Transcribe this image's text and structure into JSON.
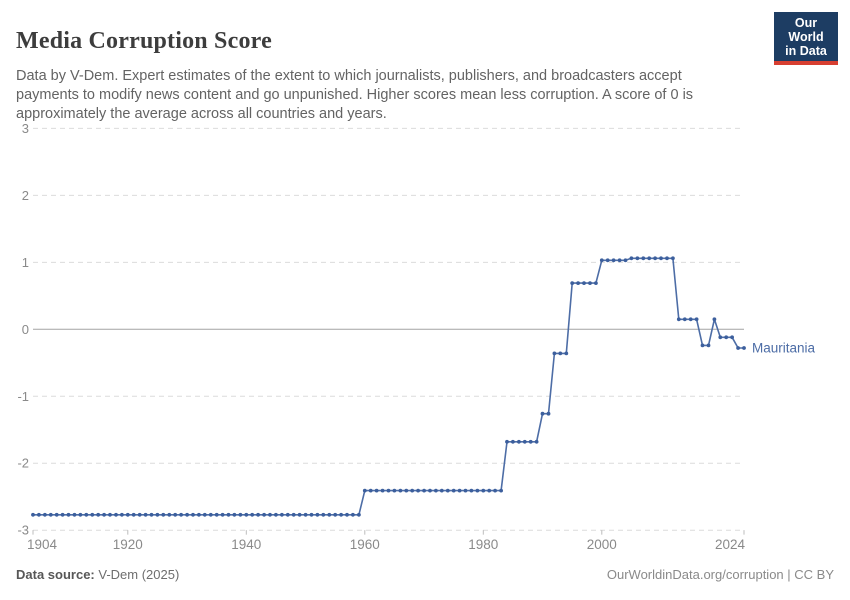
{
  "header": {
    "title": "Media Corruption Score",
    "subtitle": "Data by V-Dem. Expert estimates of the extent to which journalists, publishers, and broadcasters accept payments to modify news content and go unpunished. Higher scores mean less corruption. A score of 0 is approximately the average across all countries and years.",
    "logo": {
      "line1": "Our World",
      "line2": "in Data",
      "bg": "#1d3d63",
      "accent": "#d73f31"
    }
  },
  "footer": {
    "source_label": "Data source:",
    "source_value": "V-Dem (2025)",
    "note": "OurWorldinData.org/corruption | CC BY"
  },
  "chart_data": {
    "type": "line",
    "title": "Media Corruption Score",
    "entity": "Mauritania",
    "xlim": [
      1904,
      2024
    ],
    "ylim": [
      -3,
      3
    ],
    "x_ticks": [
      1904,
      1920,
      1940,
      1960,
      1980,
      2000,
      2024
    ],
    "y_ticks": [
      3,
      2,
      1,
      0,
      -1,
      -2,
      -3
    ],
    "grid": "horizontal-dashed",
    "zero_line": true,
    "legend_position": "end-of-line-label",
    "series": [
      {
        "name": "Mauritania",
        "color": "#4d6da6",
        "dot_color": "#3c5f9d",
        "segments": [
          {
            "from": 1904,
            "to": 1959,
            "value": -2.77
          },
          {
            "from": 1960,
            "to": 1983,
            "value": -2.41
          },
          {
            "from": 1984,
            "to": 1989,
            "value": -1.68
          },
          {
            "from": 1990,
            "to": 1991,
            "value": -1.26
          },
          {
            "from": 1992,
            "to": 1994,
            "value": -0.36
          },
          {
            "from": 1995,
            "to": 1999,
            "value": 0.69
          },
          {
            "from": 2000,
            "to": 2004,
            "value": 1.03
          },
          {
            "from": 2005,
            "to": 2012,
            "value": 1.06
          },
          {
            "from": 2013,
            "to": 2016,
            "value": 0.15
          },
          {
            "from": 2017,
            "to": 2018,
            "value": -0.24
          },
          {
            "from": 2019,
            "to": 2019,
            "value": 0.15
          },
          {
            "from": 2020,
            "to": 2022,
            "value": -0.12
          },
          {
            "from": 2023,
            "to": 2024,
            "value": -0.28
          }
        ]
      }
    ],
    "theme": {
      "grid_color": "#dcdcdc",
      "zero_line_color": "#a4a4a4",
      "axis_tick_color": "#bcbcbc",
      "tick_label_color": "#8a8a8a",
      "entity_label_color": "#4d6da6"
    }
  }
}
